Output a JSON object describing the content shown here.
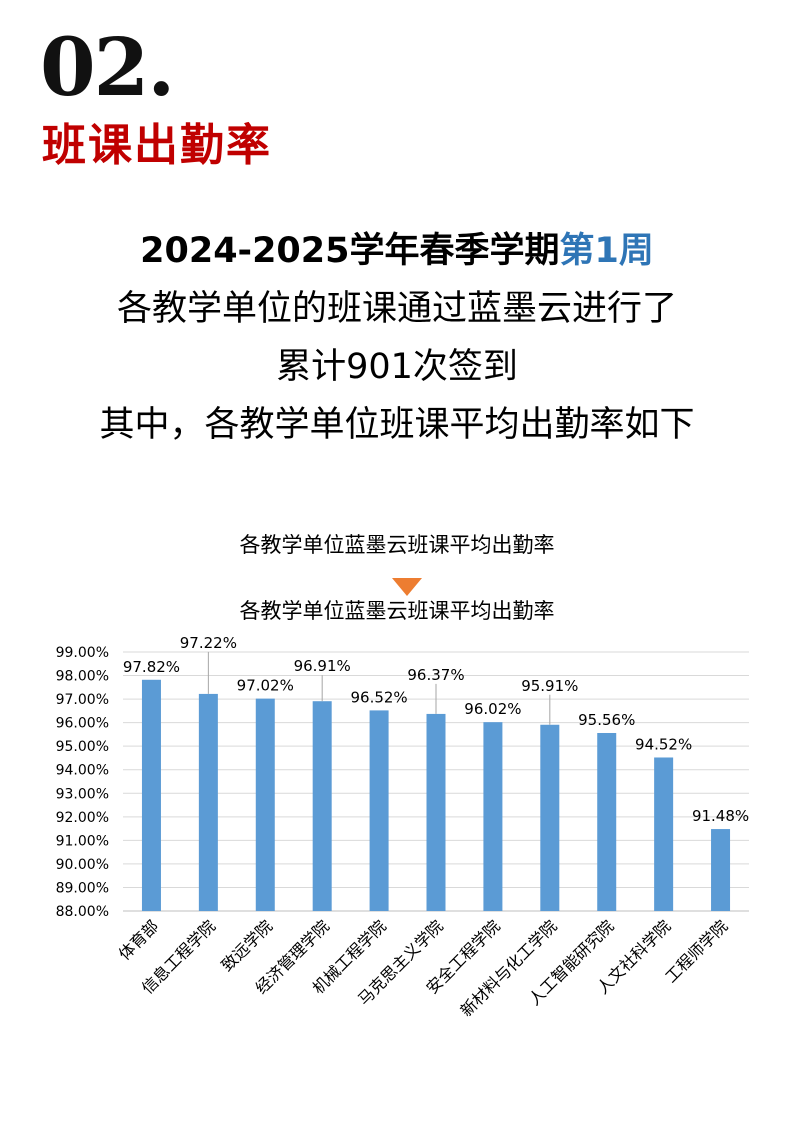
{
  "section": {
    "number": "02.",
    "title": "班课出勤率"
  },
  "intro": {
    "line1": "2024-2025学年春季学期",
    "line1_highlight": "第1周",
    "line2": "各教学单位的班课通过蓝墨云进行了",
    "line3": "累计901次签到",
    "line4": "其中，各教学单位班课平均出勤率如下"
  },
  "colors": {
    "accent_red": "#c00000",
    "highlight_blue": "#2e75b6",
    "bar": "#5b9bd5",
    "triangle": "#ed7d31"
  },
  "chart_data": {
    "type": "bar",
    "title": "各教学单位蓝墨云班课平均出勤率",
    "subtitle": "各教学单位蓝墨云班课平均出勤率",
    "categories": [
      "体育部",
      "信息工程学院",
      "致远学院",
      "经济管理学院",
      "机械工程学院",
      "马克思主义学院",
      "安全工程学院",
      "新材料与化工学院",
      "人工智能研究院",
      "人文社科学院",
      "工程师学院"
    ],
    "values": [
      97.82,
      97.22,
      97.02,
      96.91,
      96.52,
      96.37,
      96.02,
      95.91,
      95.56,
      94.52,
      91.48
    ],
    "data_labels": [
      "97.82%",
      "97.22%",
      "97.02%",
      "96.91%",
      "96.52%",
      "96.37%",
      "96.02%",
      "95.91%",
      "95.56%",
      "94.52%",
      "91.48%"
    ],
    "ylim": [
      88,
      99
    ],
    "y_ticks": [
      "88.00%",
      "89.00%",
      "90.00%",
      "91.00%",
      "92.00%",
      "93.00%",
      "94.00%",
      "95.00%",
      "96.00%",
      "97.00%",
      "98.00%",
      "99.00%"
    ],
    "xlabel": "",
    "ylabel": "",
    "grid": true,
    "legend": "none"
  }
}
